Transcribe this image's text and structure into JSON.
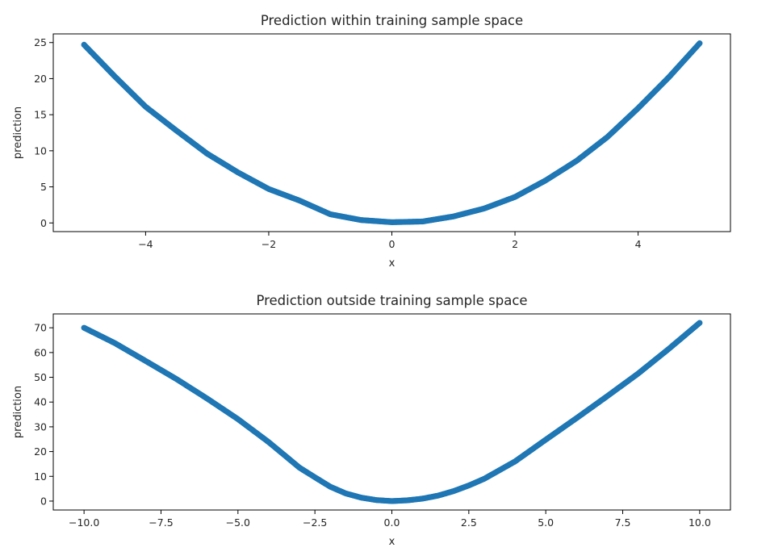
{
  "chart_data": [
    {
      "type": "scatter",
      "title": "Prediction within training sample space",
      "xlabel": "x",
      "ylabel": "prediction",
      "xlim": [
        -5.5,
        5.5
      ],
      "ylim": [
        -1.2,
        26.2
      ],
      "xticks": [
        -4,
        -2,
        0,
        2,
        4
      ],
      "xtick_labels": [
        "−4",
        "−2",
        "0",
        "2",
        "4"
      ],
      "yticks": [
        0,
        5,
        10,
        15,
        20,
        25
      ],
      "ytick_labels": [
        "0",
        "5",
        "10",
        "15",
        "20",
        "25"
      ],
      "grid": false,
      "marker_color": "#1f77b4",
      "series": [
        {
          "x": [
            -5.0,
            -4.5,
            -4.0,
            -3.5,
            -3.0,
            -2.5,
            -2.0,
            -1.5,
            -1.0,
            -0.5,
            0.0,
            0.5,
            1.0,
            1.5,
            2.0,
            2.5,
            3.0,
            3.5,
            4.0,
            4.5,
            5.0
          ],
          "y": [
            24.7,
            20.3,
            16.1,
            12.8,
            9.6,
            7.0,
            4.7,
            3.1,
            1.2,
            0.4,
            0.1,
            0.2,
            0.9,
            2.0,
            3.6,
            5.9,
            8.6,
            11.9,
            15.9,
            20.2,
            24.9
          ]
        }
      ]
    },
    {
      "type": "scatter",
      "title": "Prediction outside training sample space",
      "xlabel": "x",
      "ylabel": "prediction",
      "xlim": [
        -11.0,
        11.0
      ],
      "ylim": [
        -3.6,
        75.6
      ],
      "xticks": [
        -10.0,
        -7.5,
        -5.0,
        -2.5,
        0.0,
        2.5,
        5.0,
        7.5,
        10.0
      ],
      "xtick_labels": [
        "−10.0",
        "−7.5",
        "−5.0",
        "−2.5",
        "0.0",
        "2.5",
        "5.0",
        "7.5",
        "10.0"
      ],
      "yticks": [
        0,
        10,
        20,
        30,
        40,
        50,
        60,
        70
      ],
      "ytick_labels": [
        "0",
        "10",
        "20",
        "30",
        "40",
        "50",
        "60",
        "70"
      ],
      "grid": false,
      "marker_color": "#1f77b4",
      "series": [
        {
          "x": [
            -10.0,
            -9.0,
            -8.0,
            -7.0,
            -6.0,
            -5.0,
            -4.0,
            -3.0,
            -2.5,
            -2.0,
            -1.5,
            -1.0,
            -0.5,
            0.0,
            0.5,
            1.0,
            1.5,
            2.0,
            2.5,
            3.0,
            4.0,
            5.0,
            6.0,
            7.0,
            8.0,
            9.0,
            10.0
          ],
          "y": [
            70,
            63.8,
            56.6,
            49.3,
            41.4,
            33.1,
            23.8,
            13.5,
            9.6,
            5.8,
            3.1,
            1.4,
            0.4,
            0.0,
            0.3,
            1.0,
            2.2,
            4.0,
            6.3,
            9.0,
            16.0,
            24.8,
            33.5,
            42.4,
            51.5,
            61.5,
            72
          ]
        }
      ]
    }
  ]
}
